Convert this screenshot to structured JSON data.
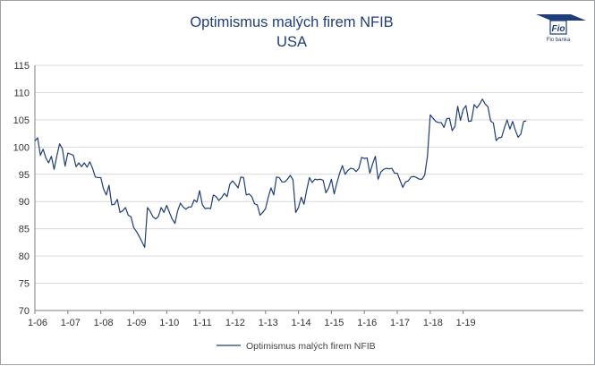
{
  "chart_data": {
    "type": "line",
    "title": "Optimismus malých firem NFIB",
    "subtitle": "USA",
    "xlabel": "",
    "ylabel": "",
    "ylim": [
      70,
      115
    ],
    "y_ticks": [
      70,
      75,
      80,
      85,
      90,
      95,
      100,
      105,
      110,
      115
    ],
    "x_tick_labels": [
      "1-06",
      "1-07",
      "1-08",
      "1-09",
      "1-10",
      "1-11",
      "1-12",
      "1-13",
      "1-14",
      "1-15",
      "1-16",
      "1-17",
      "1-18",
      "1-19"
    ],
    "grid": "horizontal",
    "legend_position": "bottom",
    "line_color": "#1f3d7a",
    "title_color": "#1f3d7a",
    "series": [
      {
        "name": "Optimismus malých firem NFIB",
        "start": "2006-01",
        "frequency": "monthly",
        "values": [
          101.1,
          101.7,
          98.5,
          99.6,
          98.0,
          97.1,
          98.3,
          95.9,
          98.4,
          100.6,
          99.7,
          96.5,
          98.9,
          98.7,
          98.5,
          96.4,
          97.1,
          96.4,
          97.1,
          96.3,
          97.3,
          96.1,
          94.5,
          94.4,
          94.4,
          92.3,
          91.2,
          93.0,
          89.4,
          89.5,
          90.4,
          88.0,
          88.3,
          88.9,
          87.5,
          87.2,
          85.2,
          84.5,
          83.6,
          82.6,
          81.6,
          88.9,
          88.2,
          87.2,
          86.8,
          87.3,
          88.9,
          88.0,
          89.3,
          88.0,
          86.8,
          86.0,
          88.3,
          89.7,
          89.0,
          88.6,
          89.0,
          89.0,
          90.3,
          89.9,
          92.0,
          89.4,
          88.7,
          88.8,
          88.7,
          91.2,
          90.9,
          90.2,
          90.7,
          91.5,
          90.9,
          93.2,
          93.8,
          93.2,
          92.5,
          94.5,
          94.4,
          91.2,
          91.4,
          90.9,
          89.6,
          89.4,
          87.5,
          88.0,
          88.7,
          90.8,
          92.5,
          91.2,
          94.5,
          94.4,
          93.6,
          93.6,
          94.1,
          94.8,
          94.0,
          88.0,
          88.9,
          90.8,
          89.5,
          92.1,
          94.4,
          93.5,
          94.1,
          94.0,
          94.1,
          93.9,
          91.6,
          92.5,
          94.1,
          91.4,
          93.4,
          95.2,
          96.6,
          95.0,
          95.7,
          96.1,
          96.0,
          95.5,
          96.1,
          98.1,
          97.9,
          98.0,
          95.2,
          96.9,
          98.3,
          94.1,
          95.4,
          95.9,
          96.1,
          96.0,
          96.1,
          95.2,
          95.2,
          93.9,
          92.6,
          93.6,
          93.8,
          94.5,
          94.6,
          94.4,
          94.1,
          94.1,
          94.9,
          98.4,
          105.9,
          105.3,
          104.7,
          104.5,
          104.5,
          103.6,
          105.2,
          105.3,
          103.0,
          103.8,
          107.5,
          104.9,
          106.9,
          107.6,
          104.7,
          104.8,
          107.8,
          107.2,
          107.9,
          108.8,
          107.9,
          107.4,
          104.8,
          104.4,
          101.2,
          101.7,
          101.8,
          103.5,
          105.0,
          103.3,
          104.7,
          103.1,
          101.8,
          102.4,
          104.7,
          104.8
        ]
      }
    ]
  },
  "logo": {
    "name": "Fio",
    "caption": "Fio banka"
  }
}
